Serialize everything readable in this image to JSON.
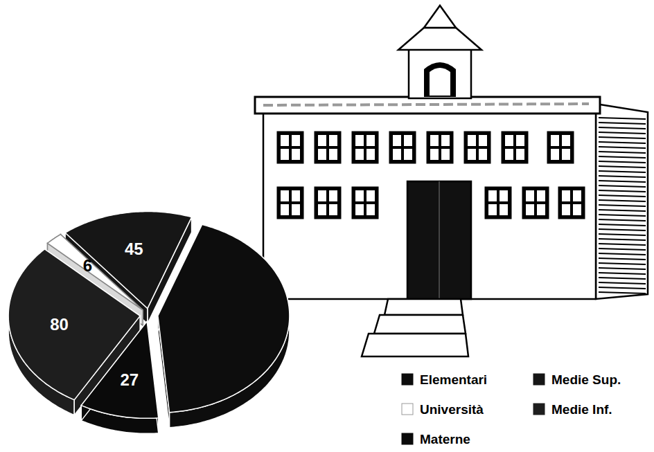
{
  "chart_data": {
    "type": "pie",
    "categories": [
      "Elementari",
      "Medie Sup.",
      "Università",
      "Medie Inf.",
      "Materne"
    ],
    "values": [
      120,
      45,
      6,
      80,
      27
    ],
    "value_labels": [
      null,
      "45",
      "6",
      "80",
      "27"
    ],
    "colors": [
      "#0d0d0d",
      "#161616",
      "#ffffff",
      "#1e1e1e",
      "#0a0a0a"
    ],
    "data_labels": true,
    "legend": "lower right"
  }
}
